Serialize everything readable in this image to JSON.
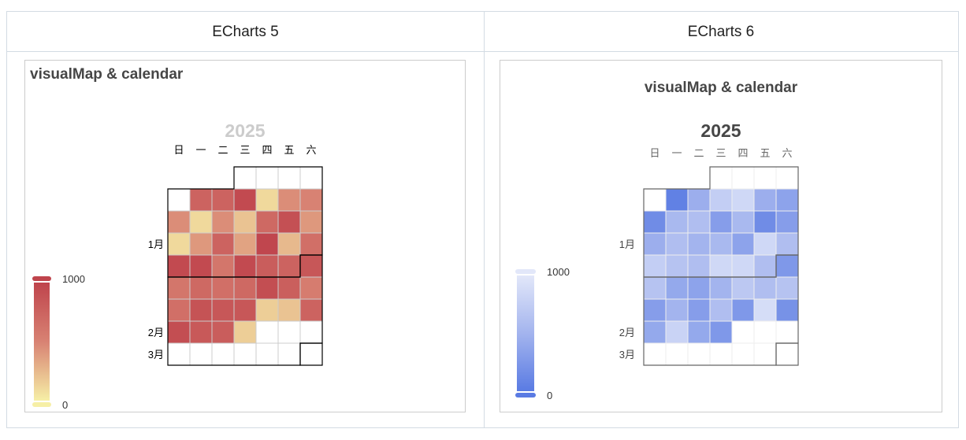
{
  "columns": [
    {
      "header": "ECharts 5"
    },
    {
      "header": "ECharts 6"
    }
  ],
  "chart_data": [
    {
      "type": "heatmap",
      "title": "visualMap & calendar",
      "calendar_year": "2025",
      "range": [
        "2025-01-01",
        "2025-03-01"
      ],
      "day_labels": [
        "日",
        "一",
        "二",
        "三",
        "四",
        "五",
        "六"
      ],
      "month_labels": [
        "1月",
        "2月",
        "3月"
      ],
      "data_start": "2025-01-06",
      "values": [
        750,
        750,
        950,
        100,
        450,
        500,
        450,
        100,
        450,
        200,
        700,
        900,
        400,
        100,
        400,
        750,
        350,
        980,
        250,
        650,
        950,
        950,
        600,
        950,
        800,
        750,
        850,
        600,
        700,
        650,
        700,
        920,
        780,
        550,
        650,
        880,
        850,
        850,
        150,
        200,
        750,
        920,
        830,
        800,
        150
      ],
      "visual_map": {
        "min": 0,
        "max": 1000,
        "min_label": "0",
        "max_label": "1000",
        "colors": [
          "#f6efa6",
          "#d88273",
          "#bf444c"
        ]
      },
      "year_color": "#cccccc",
      "split_color": "#000000"
    },
    {
      "type": "heatmap",
      "title": "visualMap & calendar",
      "calendar_year": "2025",
      "range": [
        "2025-01-01",
        "2025-03-01"
      ],
      "day_labels": [
        "日",
        "一",
        "二",
        "三",
        "四",
        "五",
        "六"
      ],
      "month_labels": [
        "1月",
        "2月",
        "3月"
      ],
      "data_start": "2025-01-06",
      "values": [
        50,
        450,
        750,
        850,
        450,
        350,
        150,
        550,
        600,
        300,
        550,
        150,
        300,
        450,
        600,
        500,
        550,
        350,
        850,
        600,
        750,
        650,
        600,
        850,
        850,
        600,
        250,
        650,
        400,
        350,
        500,
        700,
        600,
        650,
        300,
        500,
        300,
        600,
        250,
        900,
        200,
        400,
        800,
        400,
        250
      ],
      "visual_map": {
        "min": 0,
        "max": 1000,
        "min_label": "0",
        "max_label": "1000",
        "colors": [
          "#5a7be3",
          "#a3b4ee",
          "#e2e7f9"
        ]
      },
      "year_color": "#464646",
      "split_color": "#666666"
    }
  ]
}
